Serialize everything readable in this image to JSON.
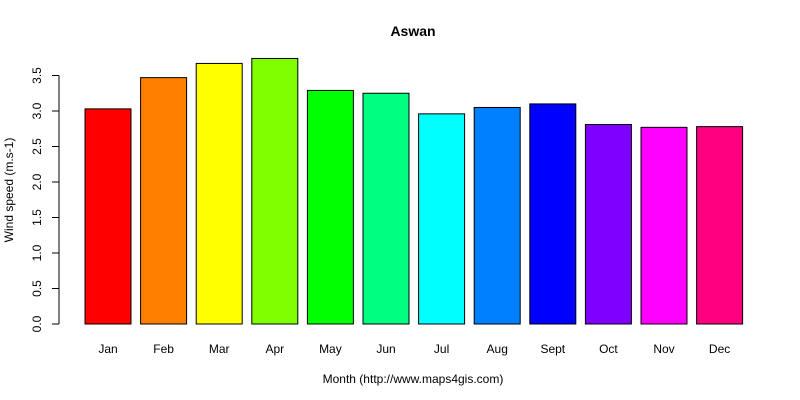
{
  "chart_data": {
    "type": "bar",
    "title": "Aswan",
    "xlabel": "Month (http://www.maps4gis.com)",
    "ylabel": "Wind speed (m.s-1)",
    "categories": [
      "Jan",
      "Feb",
      "Mar",
      "Apr",
      "May",
      "Jun",
      "Jul",
      "Aug",
      "Sept",
      "Oct",
      "Nov",
      "Dec"
    ],
    "values": [
      3.03,
      3.47,
      3.67,
      3.74,
      3.29,
      3.25,
      2.96,
      3.05,
      3.1,
      2.81,
      2.77,
      2.78
    ],
    "colors": [
      "#FF0000",
      "#FF8000",
      "#FFFF00",
      "#80FF00",
      "#00FF00",
      "#00FF80",
      "#00FFFF",
      "#0080FF",
      "#0000FF",
      "#8000FF",
      "#FF00FF",
      "#FF0080"
    ],
    "ylim": [
      0,
      3.5
    ],
    "yticks": [
      "0.0",
      "0.5",
      "1.0",
      "1.5",
      "2.0",
      "2.5",
      "3.0",
      "3.5"
    ],
    "grid": false,
    "legend": "none"
  }
}
